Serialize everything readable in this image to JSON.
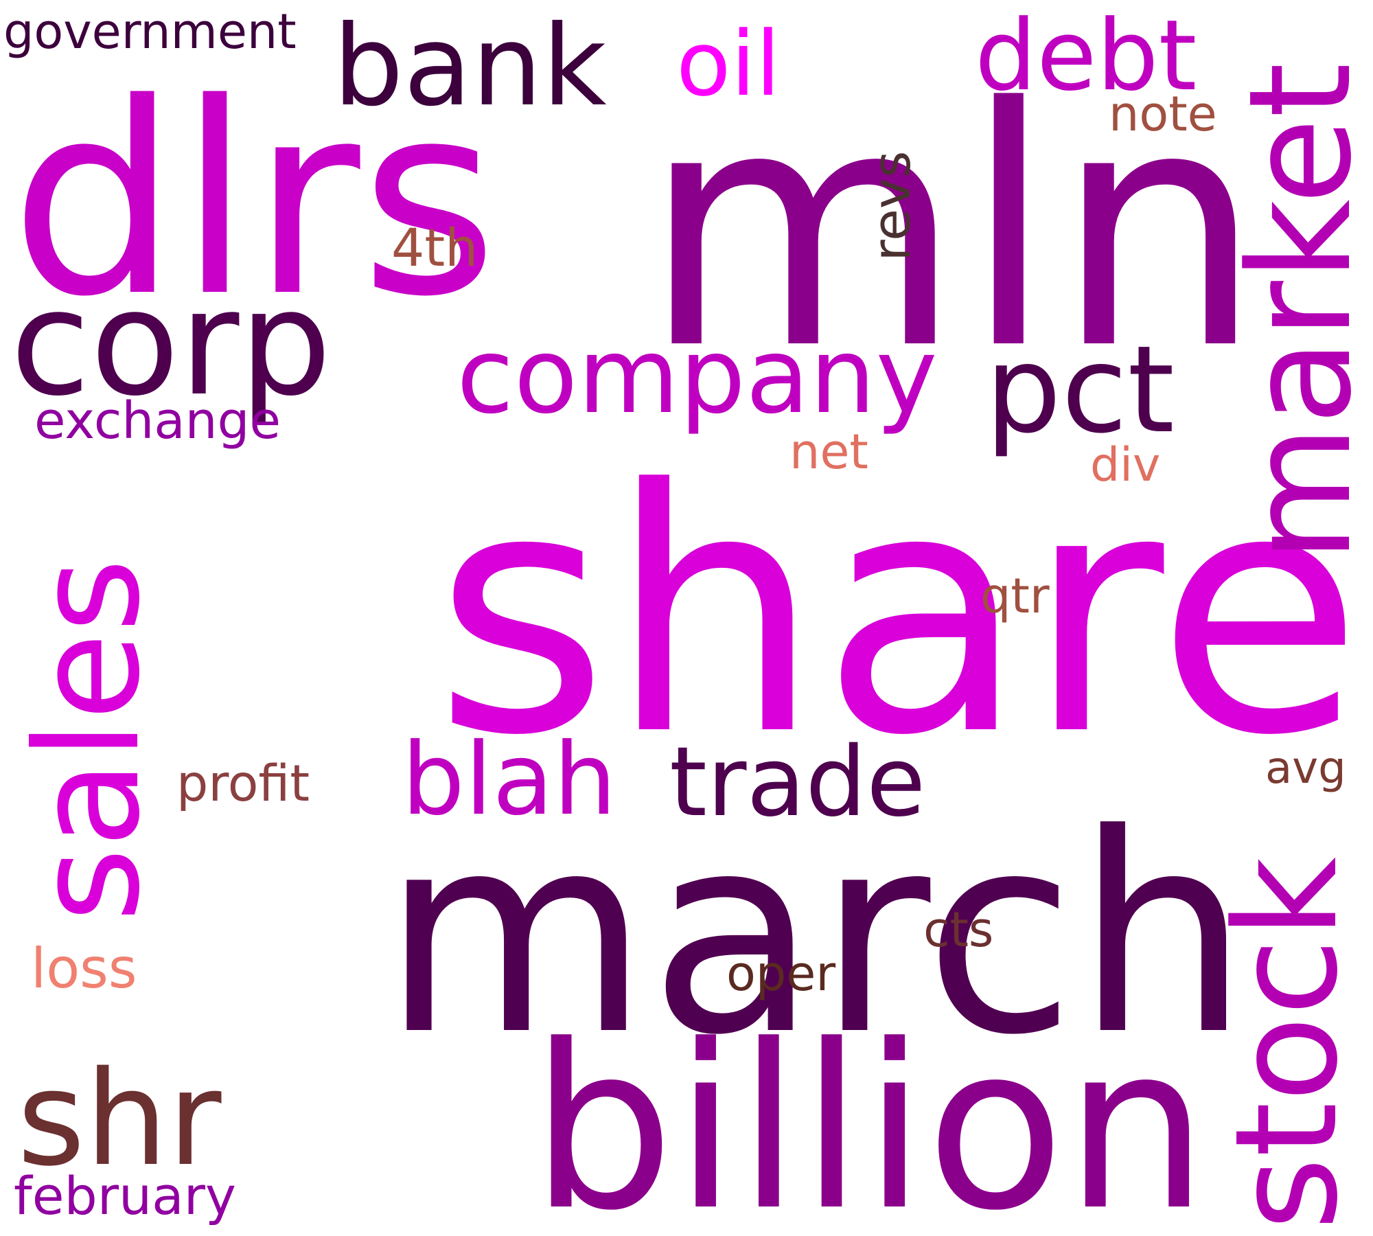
{
  "words": [
    {
      "text": "share",
      "color": "#d900d9"
    },
    {
      "text": "march",
      "color": "#500050"
    },
    {
      "text": "mln",
      "color": "#8b008b"
    },
    {
      "text": "dlrs",
      "color": "#c800c8"
    },
    {
      "text": "billion",
      "color": "#8b008b"
    },
    {
      "text": "sales",
      "color": "#d900d9"
    },
    {
      "text": "company",
      "color": "#c000c0"
    },
    {
      "text": "corp",
      "color": "#4e004e"
    },
    {
      "text": "market",
      "color": "#b300b3"
    },
    {
      "text": "stock",
      "color": "#b300b3"
    },
    {
      "text": "bank",
      "color": "#3c003c"
    },
    {
      "text": "shr",
      "color": "#6b3030"
    },
    {
      "text": "pct",
      "color": "#4e004e"
    },
    {
      "text": "debt",
      "color": "#c000c0"
    },
    {
      "text": "trade",
      "color": "#4e004e"
    },
    {
      "text": "blah",
      "color": "#c000c0"
    },
    {
      "text": "oil",
      "color": "#ff00ff"
    },
    {
      "text": "exchange",
      "color": "#9000a0"
    },
    {
      "text": "government",
      "color": "#3c003c"
    },
    {
      "text": "february",
      "color": "#9000a0"
    },
    {
      "text": "profit",
      "color": "#8b4040"
    },
    {
      "text": "revs",
      "color": "#4a3030"
    },
    {
      "text": "4th",
      "color": "#a05040"
    },
    {
      "text": "note",
      "color": "#a05040"
    },
    {
      "text": "net",
      "color": "#e07060"
    },
    {
      "text": "div",
      "color": "#e07060"
    },
    {
      "text": "qtr",
      "color": "#a05040"
    },
    {
      "text": "avg",
      "color": "#7a3a30"
    },
    {
      "text": "cts",
      "color": "#6b3030"
    },
    {
      "text": "oper",
      "color": "#5a2a20"
    },
    {
      "text": "loss",
      "color": "#f08070"
    }
  ]
}
